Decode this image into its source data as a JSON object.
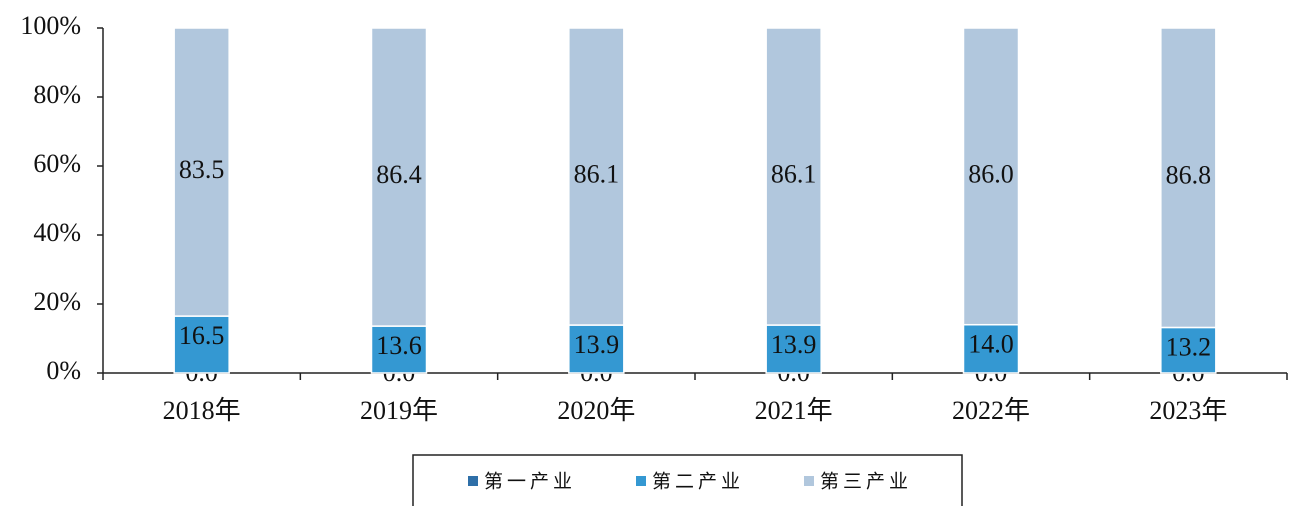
{
  "chart_data": {
    "type": "stacked-bar",
    "categories": [
      "2018年",
      "2019年",
      "2020年",
      "2021年",
      "2022年",
      "2023年"
    ],
    "series": [
      {
        "name": "第一产业",
        "color": "#2e6fa8",
        "values": [
          0,
          0,
          0,
          0,
          0,
          0
        ],
        "value_labels": [
          "0.0",
          "0.0",
          "0.0",
          "0.0",
          "0.0",
          "0.0"
        ]
      },
      {
        "name": "第二产业",
        "color": "#3498d2",
        "values": [
          16.5,
          13.6,
          13.9,
          13.9,
          14,
          13.2
        ],
        "value_labels": [
          "16.5",
          "13.6",
          "13.9",
          "13.9",
          "14.0",
          "13.2"
        ]
      },
      {
        "name": "第三产业",
        "color": "#b1c7dd",
        "values": [
          83.5,
          86.4,
          86.1,
          86.1,
          86,
          86.8
        ],
        "value_labels": [
          "83.5",
          "86.4",
          "86.1",
          "86.1",
          "86.0",
          "86.8"
        ]
      }
    ],
    "ylim": [
      0,
      100
    ],
    "yticks": [
      {
        "value": 0,
        "label": "0%"
      },
      {
        "value": 20,
        "label": "20%"
      },
      {
        "value": 40,
        "label": "40%"
      },
      {
        "value": 60,
        "label": "60%"
      },
      {
        "value": 80,
        "label": "80%"
      },
      {
        "value": 100,
        "label": "100%"
      }
    ],
    "legend": "bottom"
  }
}
